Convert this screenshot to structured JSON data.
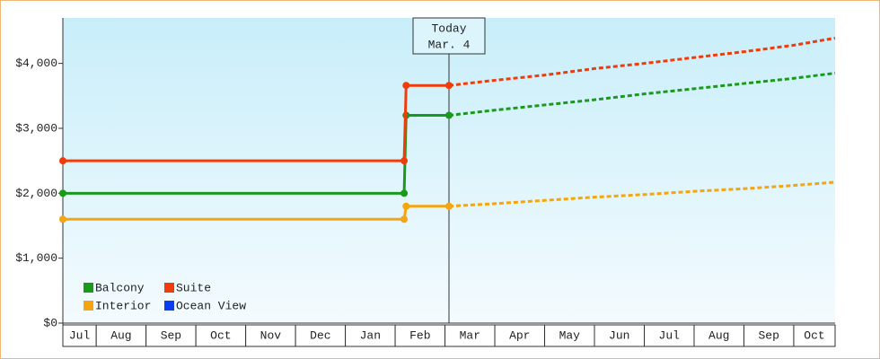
{
  "chart_data": {
    "type": "line",
    "xlim": [
      0.33,
      15.83
    ],
    "xticks": [
      {
        "value": 0,
        "label": "Jul"
      },
      {
        "value": 1,
        "label": "Aug"
      },
      {
        "value": 2,
        "label": "Sep"
      },
      {
        "value": 3,
        "label": "Oct"
      },
      {
        "value": 4,
        "label": "Nov"
      },
      {
        "value": 5,
        "label": "Dec"
      },
      {
        "value": 6,
        "label": "Jan"
      },
      {
        "value": 7,
        "label": "Feb"
      },
      {
        "value": 8,
        "label": "Mar"
      },
      {
        "value": 9,
        "label": "Apr"
      },
      {
        "value": 10,
        "label": "May"
      },
      {
        "value": 11,
        "label": "Jun"
      },
      {
        "value": 12,
        "label": "Jul"
      },
      {
        "value": 13,
        "label": "Aug"
      },
      {
        "value": 14,
        "label": "Sep"
      },
      {
        "value": 15,
        "label": "Oct"
      }
    ],
    "ylim": [
      0,
      4700
    ],
    "yticks": [
      {
        "value": 0,
        "label": "$0"
      },
      {
        "value": 1000,
        "label": "$1,000"
      },
      {
        "value": 2000,
        "label": "$2,000"
      },
      {
        "value": 3000,
        "label": "$3,000"
      },
      {
        "value": 4000,
        "label": "$4,000"
      }
    ],
    "today": {
      "label": "Today",
      "date": "Mar. 4",
      "x": 8.08
    },
    "series": [
      {
        "name": "Balcony",
        "color": "#1a9a1a",
        "x": [
          0.33,
          7.18,
          7.22,
          8.08
        ],
        "values": [
          2000,
          2000,
          3200,
          3200
        ],
        "forecast": {
          "x": [
            8.08,
            9,
            10,
            11,
            12,
            13,
            14,
            15,
            15.83
          ],
          "values": [
            3200,
            3280,
            3360,
            3440,
            3530,
            3610,
            3690,
            3770,
            3850
          ]
        }
      },
      {
        "name": "Suite",
        "color": "#f03c0a",
        "x": [
          0.33,
          7.18,
          7.22,
          8.08
        ],
        "values": [
          2500,
          2500,
          3660,
          3660
        ],
        "forecast": {
          "x": [
            8.08,
            9,
            10,
            11,
            12,
            13,
            14,
            15,
            15.83
          ],
          "values": [
            3660,
            3740,
            3820,
            3920,
            4000,
            4090,
            4180,
            4280,
            4390
          ]
        }
      },
      {
        "name": "Interior",
        "color": "#f5a511",
        "x": [
          0.33,
          7.18,
          7.22,
          8.08
        ],
        "values": [
          1600,
          1600,
          1800,
          1800
        ],
        "forecast": {
          "x": [
            8.08,
            9,
            10,
            11,
            12,
            13,
            14,
            15,
            15.83
          ],
          "values": [
            1800,
            1840,
            1890,
            1940,
            1980,
            2030,
            2070,
            2120,
            2170
          ]
        }
      },
      {
        "name": "Ocean View",
        "color": "#0a3cf0",
        "x": [],
        "values": [],
        "forecast": {
          "x": [],
          "values": []
        }
      }
    ]
  }
}
